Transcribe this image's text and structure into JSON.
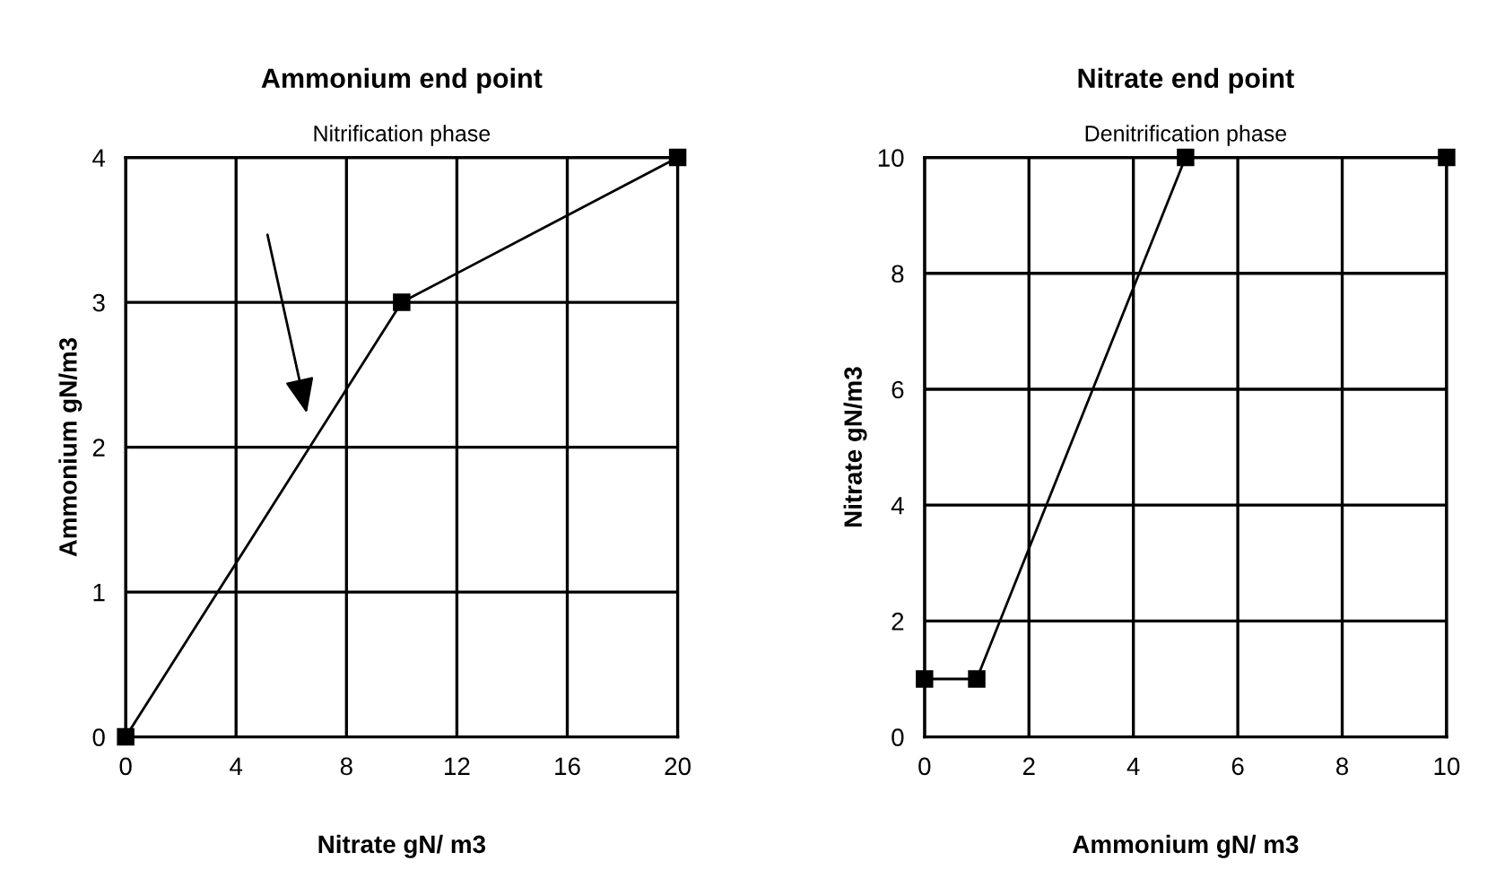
{
  "chart_data": [
    {
      "type": "line",
      "title": "Ammonium end point",
      "subtitle": "Nitrification phase",
      "xlabel": "Nitrate gN/ m3",
      "ylabel": "Ammonium gN/m3",
      "x": [
        0,
        10,
        20
      ],
      "values": [
        0,
        3,
        4
      ],
      "color": "#000000",
      "marker": "square",
      "line_style": "solid",
      "xlim": [
        0,
        20
      ],
      "xticks": [
        0,
        4,
        8,
        12,
        16,
        20
      ],
      "ylim": [
        0,
        4
      ],
      "yticks": [
        0,
        1,
        2,
        3,
        4
      ],
      "grid": true
    },
    {
      "type": "line",
      "title": "Nitrate end point",
      "subtitle": "Denitrification phase",
      "xlabel": "Ammonium gN/ m3",
      "ylabel": "Nitrate gN/m3",
      "x": [
        0,
        1,
        5,
        10
      ],
      "values": [
        1,
        1,
        10,
        10
      ],
      "color": "#000000",
      "marker": "square",
      "line_style": "solid",
      "xlim": [
        0,
        10
      ],
      "xticks": [
        0,
        2,
        4,
        6,
        8,
        10
      ],
      "ylim": [
        0,
        10
      ],
      "yticks": [
        0,
        2,
        4,
        6,
        8,
        10
      ],
      "grid": true
    }
  ]
}
